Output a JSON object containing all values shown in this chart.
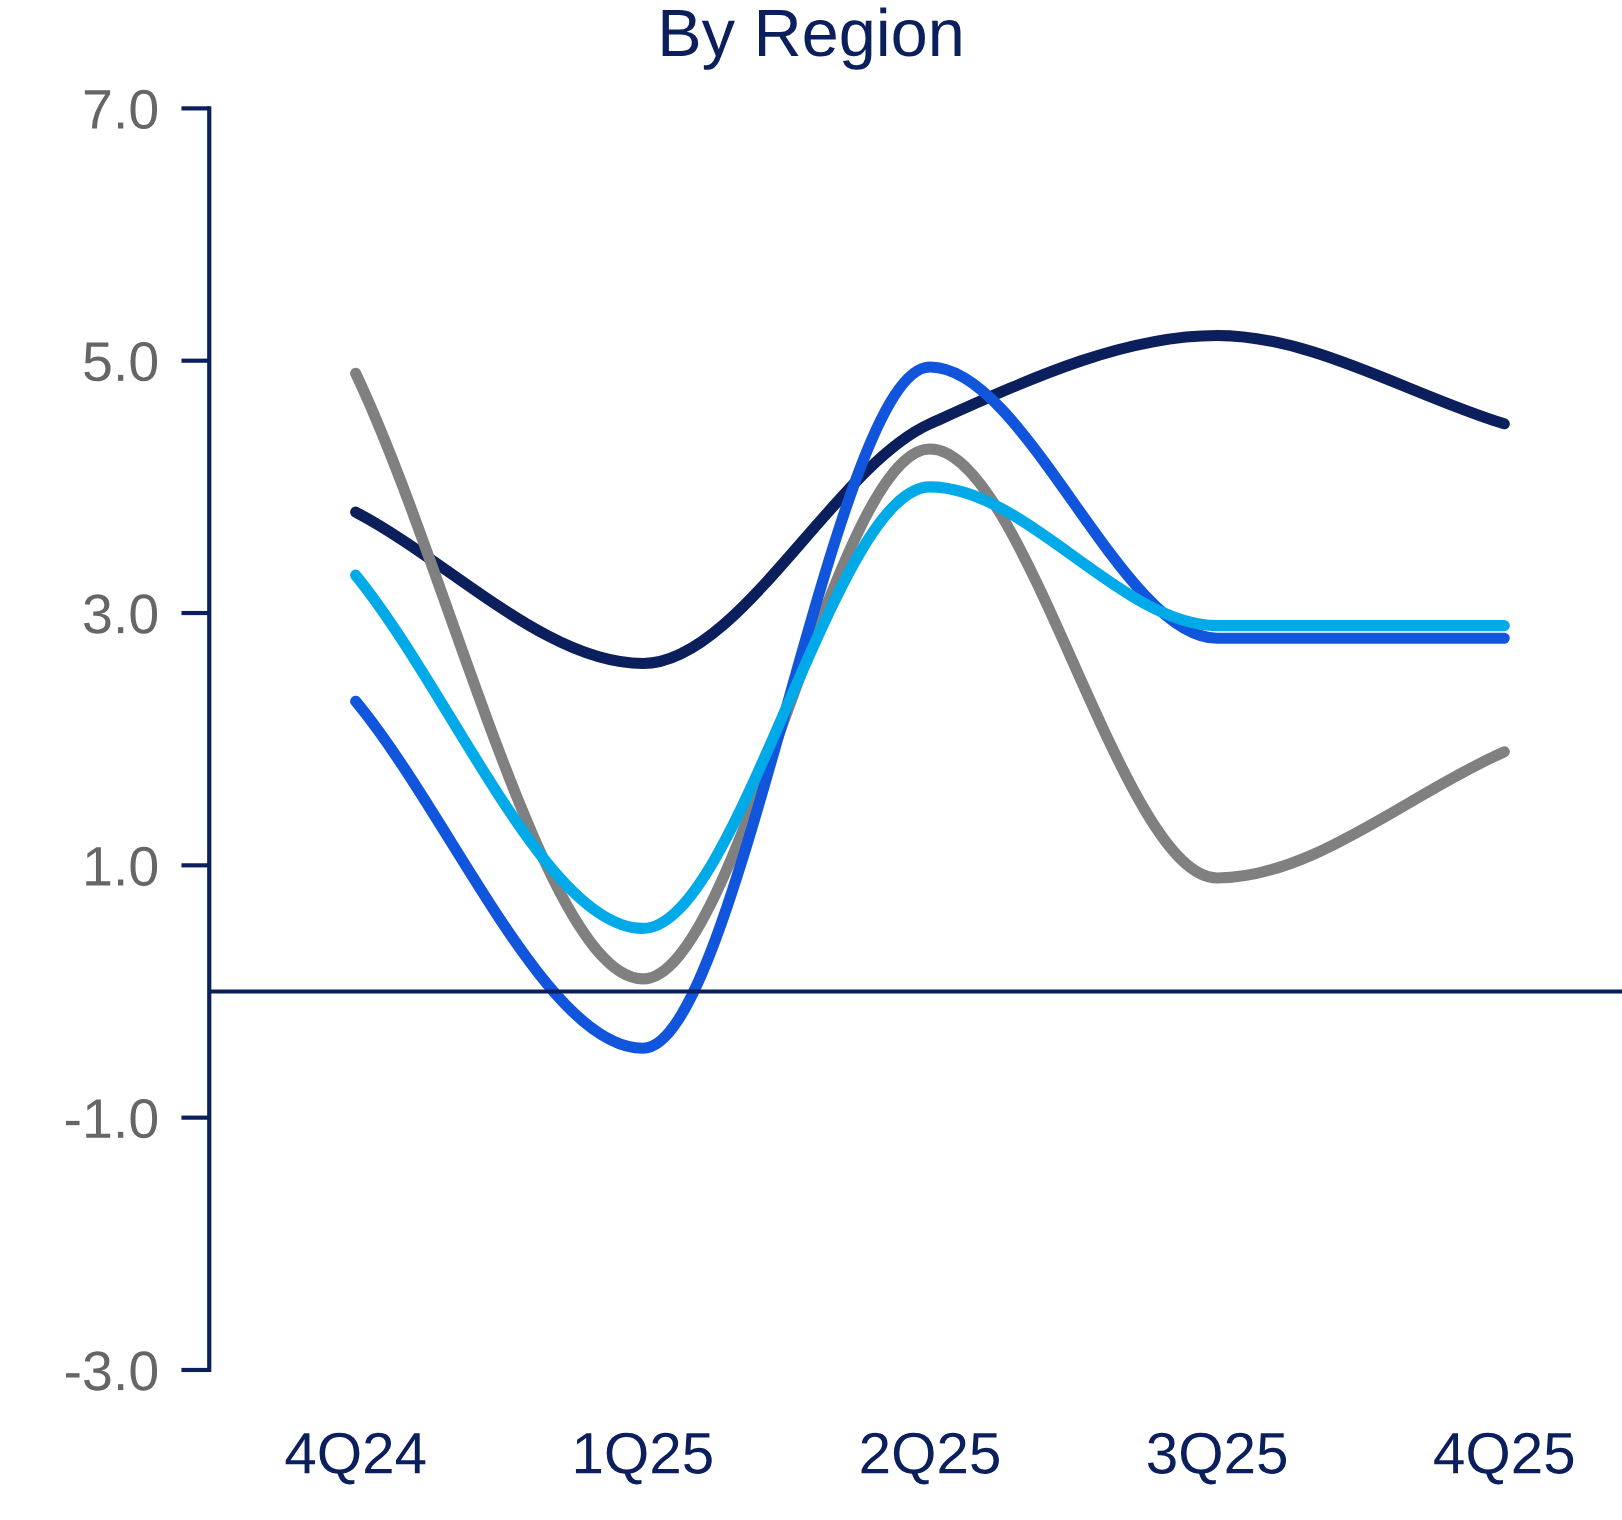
{
  "chart_data": {
    "type": "line",
    "title": "By Region",
    "categories": [
      "4Q24",
      "1Q25",
      "2Q25",
      "3Q25",
      "4Q25"
    ],
    "series": [
      {
        "color": "#0a1f5c",
        "values": [
          3.8,
          2.6,
          4.5,
          5.2,
          4.5
        ]
      },
      {
        "color": "#808080",
        "values": [
          4.9,
          0.1,
          4.3,
          0.9,
          1.9
        ]
      },
      {
        "color": "#1155dd",
        "values": [
          2.3,
          -0.45,
          4.95,
          2.8,
          2.8
        ]
      },
      {
        "color": "#00a9e8",
        "values": [
          3.3,
          0.5,
          4.0,
          2.9,
          2.9
        ]
      }
    ],
    "ylim": [
      -3,
      7
    ],
    "yticks": [
      {
        "value": -3,
        "label": "-3.0"
      },
      {
        "value": -1,
        "label": "-1.0"
      },
      {
        "value": 1,
        "label": "1.0"
      },
      {
        "value": 3,
        "label": "3.0"
      },
      {
        "value": 5,
        "label": "5.0"
      },
      {
        "value": 7,
        "label": "7.0"
      }
    ],
    "ref_lines": [
      {
        "axis": "y",
        "value": 0,
        "color": "#0a1f5c"
      }
    ],
    "grid": false,
    "legend": false,
    "marker": "none",
    "line_style": "solid"
  }
}
